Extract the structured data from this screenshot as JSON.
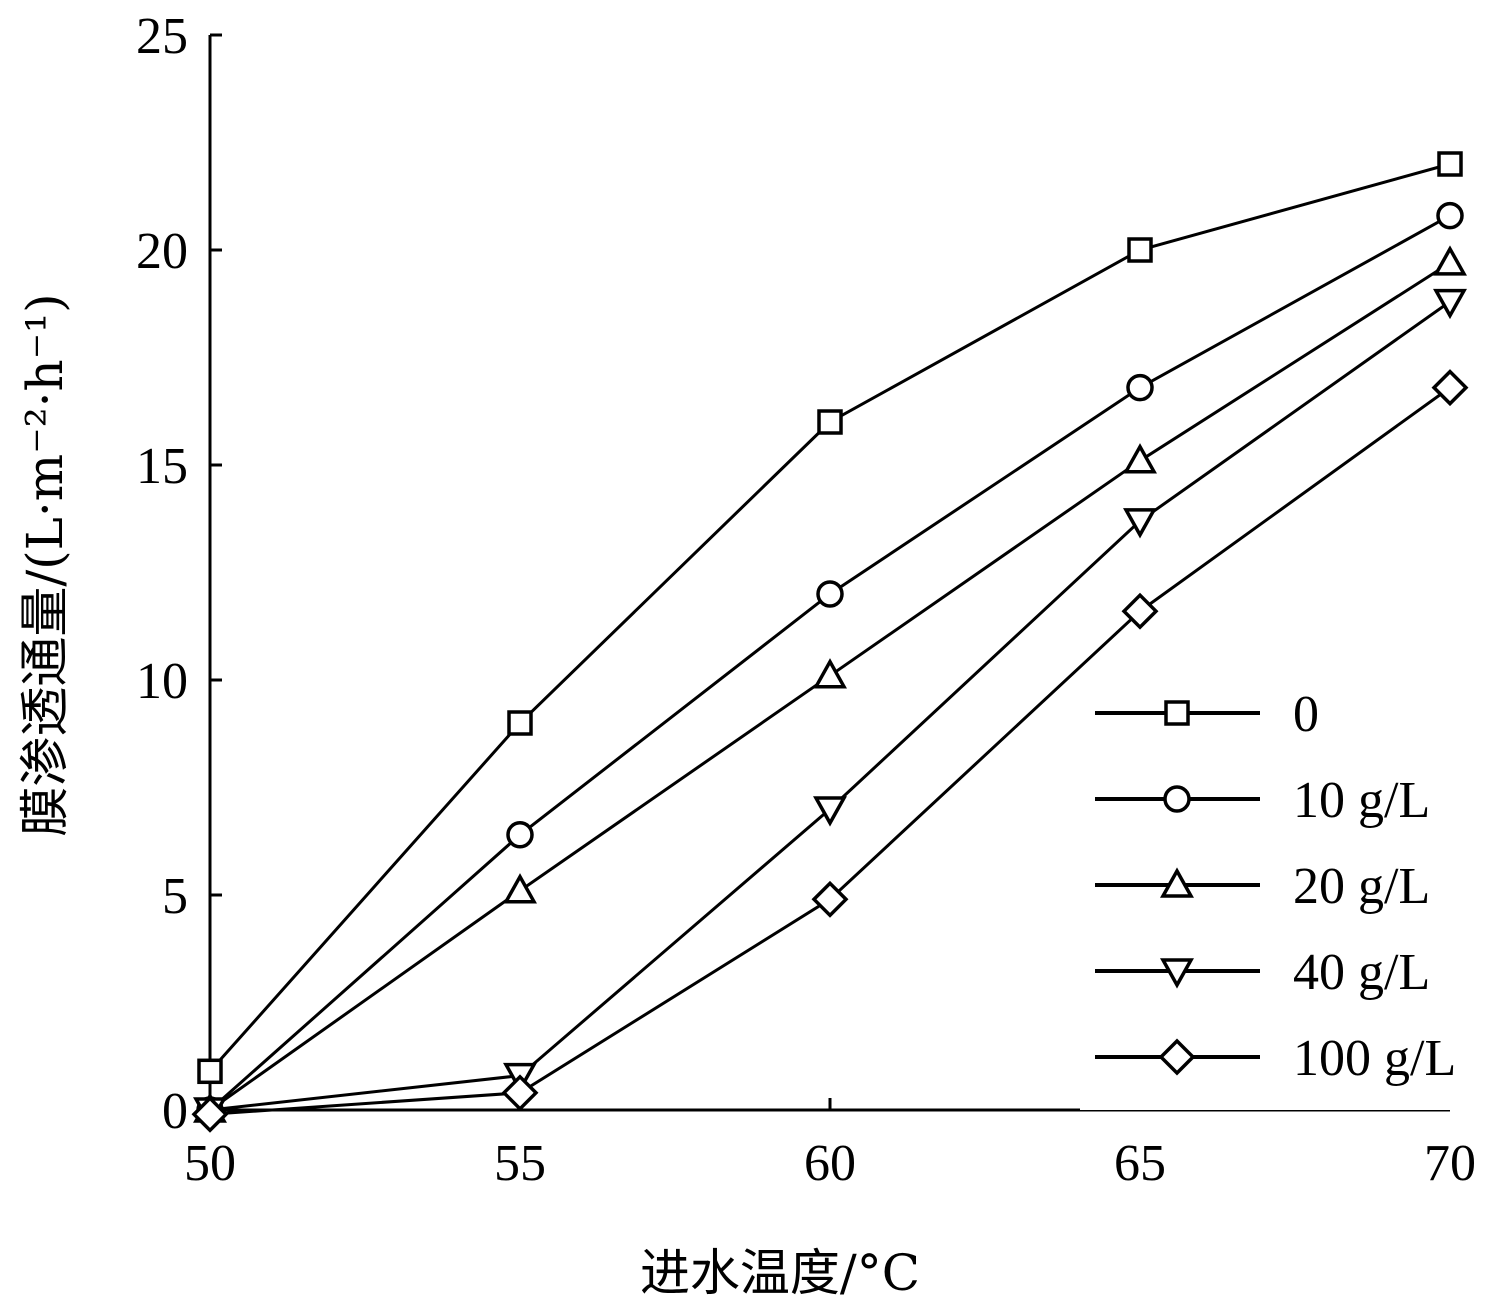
{
  "chart_data": {
    "type": "line",
    "xlabel": "进水温度/°C",
    "ylabel": "膜渗透通量/(L·m⁻²·h⁻¹)",
    "xlim": [
      50,
      70
    ],
    "ylim": [
      0,
      25
    ],
    "xticks": [
      50,
      55,
      60,
      65,
      70
    ],
    "yticks": [
      0,
      5,
      10,
      15,
      20,
      25
    ],
    "x": [
      50,
      55,
      60,
      65,
      70
    ],
    "grid": false,
    "legend_position": "bottom-right",
    "series": [
      {
        "name": "0",
        "marker": "square",
        "values": [
          0.9,
          9.0,
          16.0,
          20.0,
          22.0
        ]
      },
      {
        "name": "10 g/L",
        "marker": "circle",
        "values": [
          0.0,
          6.4,
          12.0,
          16.8,
          20.8
        ]
      },
      {
        "name": "20 g/L",
        "marker": "triangle-up",
        "values": [
          0.0,
          5.1,
          10.1,
          15.1,
          19.7
        ]
      },
      {
        "name": "40 g/L",
        "marker": "triangle-down",
        "values": [
          0.0,
          0.8,
          7.0,
          13.7,
          18.8
        ]
      },
      {
        "name": "100 g/L",
        "marker": "diamond",
        "values": [
          -0.1,
          0.4,
          4.9,
          11.6,
          16.8
        ]
      }
    ]
  }
}
